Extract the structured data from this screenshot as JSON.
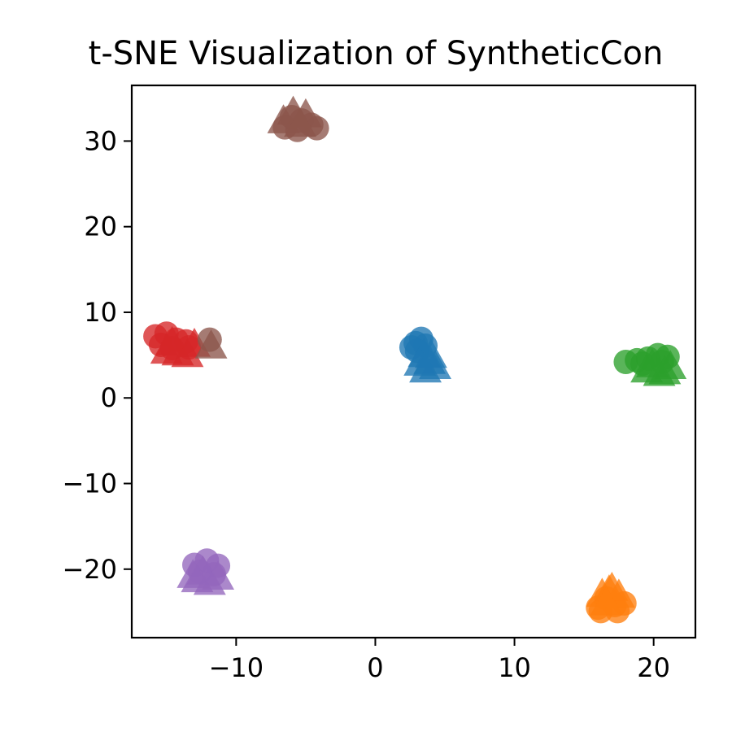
{
  "chart_data": {
    "type": "scatter",
    "title": "t-SNE Visualization of SyntheticCon",
    "xlabel": "",
    "ylabel": "",
    "xlim": [
      -17.5,
      23
    ],
    "ylim": [
      -28,
      36.5
    ],
    "xticks": [
      -10,
      0,
      10,
      20
    ],
    "xtick_labels": [
      "−10",
      "0",
      "10",
      "20"
    ],
    "yticks": [
      -20,
      -10,
      0,
      10,
      20,
      30
    ],
    "ytick_labels": [
      "−20",
      "−10",
      "0",
      "10",
      "20",
      "30"
    ],
    "grid": false,
    "legend": "none",
    "marker_styles": [
      "circle",
      "triangle"
    ],
    "series": [
      {
        "color": "#1f77b4",
        "points": [
          [
            2.9,
            6.4,
            "circle"
          ],
          [
            3.3,
            6.9,
            "circle"
          ],
          [
            2.6,
            5.9,
            "circle"
          ],
          [
            3.6,
            6.1,
            "circle"
          ],
          [
            3.0,
            5.5,
            "circle"
          ],
          [
            3.5,
            5.0,
            "triangle"
          ],
          [
            3.9,
            4.2,
            "triangle"
          ],
          [
            3.2,
            4.0,
            "triangle"
          ],
          [
            4.3,
            3.6,
            "triangle"
          ],
          [
            3.6,
            3.2,
            "triangle"
          ],
          [
            4.0,
            4.9,
            "triangle"
          ]
        ]
      },
      {
        "color": "#ff7f0e",
        "points": [
          [
            16.0,
            -24.5,
            "circle"
          ],
          [
            17.2,
            -24.2,
            "circle"
          ],
          [
            17.9,
            -24.0,
            "circle"
          ],
          [
            16.6,
            -23.4,
            "circle"
          ],
          [
            16.2,
            -24.9,
            "circle"
          ],
          [
            17.4,
            -24.9,
            "circle"
          ],
          [
            16.8,
            -22.6,
            "triangle"
          ],
          [
            17.5,
            -23.1,
            "triangle"
          ],
          [
            16.3,
            -23.0,
            "triangle"
          ],
          [
            17.0,
            -22.3,
            "triangle"
          ],
          [
            16.6,
            -24.0,
            "triangle"
          ]
        ]
      },
      {
        "color": "#2ca02c",
        "points": [
          [
            18.0,
            4.2,
            "circle"
          ],
          [
            18.8,
            4.4,
            "circle"
          ],
          [
            19.6,
            4.6,
            "circle"
          ],
          [
            20.3,
            5.0,
            "circle"
          ],
          [
            21.0,
            4.8,
            "circle"
          ],
          [
            19.2,
            4.0,
            "circle"
          ],
          [
            20.6,
            4.2,
            "circle"
          ],
          [
            19.5,
            3.2,
            "triangle"
          ],
          [
            20.4,
            2.8,
            "triangle"
          ],
          [
            21.2,
            3.6,
            "triangle"
          ],
          [
            19.9,
            3.8,
            "triangle"
          ],
          [
            20.8,
            3.0,
            "triangle"
          ]
        ]
      },
      {
        "color": "#d62728",
        "points": [
          [
            -15.8,
            7.2,
            "circle"
          ],
          [
            -15.0,
            7.5,
            "circle"
          ],
          [
            -14.3,
            6.8,
            "circle"
          ],
          [
            -13.6,
            6.6,
            "circle"
          ],
          [
            -15.4,
            6.2,
            "circle"
          ],
          [
            -14.6,
            5.8,
            "circle"
          ],
          [
            -13.4,
            5.9,
            "circle"
          ],
          [
            -15.0,
            5.4,
            "triangle"
          ],
          [
            -14.2,
            5.2,
            "triangle"
          ],
          [
            -13.5,
            5.0,
            "triangle"
          ],
          [
            -14.6,
            6.4,
            "triangle"
          ],
          [
            -13.0,
            6.2,
            "triangle"
          ]
        ]
      },
      {
        "color": "#8c564b",
        "points": [
          [
            -6.0,
            32.8,
            "circle"
          ],
          [
            -5.3,
            32.4,
            "circle"
          ],
          [
            -4.6,
            31.9,
            "circle"
          ],
          [
            -6.5,
            31.6,
            "circle"
          ],
          [
            -5.6,
            31.3,
            "circle"
          ],
          [
            -4.2,
            31.5,
            "circle"
          ],
          [
            -5.9,
            33.3,
            "triangle"
          ],
          [
            -5.0,
            33.0,
            "triangle"
          ],
          [
            -5.4,
            31.9,
            "triangle"
          ],
          [
            -6.6,
            32.3,
            "triangle"
          ],
          [
            -11.9,
            6.8,
            "circle"
          ],
          [
            -11.8,
            6.0,
            "triangle"
          ]
        ]
      },
      {
        "color": "#9467bd",
        "points": [
          [
            -13.0,
            -19.5,
            "circle"
          ],
          [
            -12.1,
            -19.0,
            "circle"
          ],
          [
            -11.3,
            -19.6,
            "circle"
          ],
          [
            -12.6,
            -20.3,
            "circle"
          ],
          [
            -11.6,
            -20.6,
            "circle"
          ],
          [
            -12.8,
            -21.3,
            "triangle"
          ],
          [
            -11.9,
            -21.6,
            "triangle"
          ],
          [
            -11.3,
            -21.0,
            "triangle"
          ],
          [
            -12.4,
            -20.4,
            "triangle"
          ],
          [
            -13.1,
            -20.8,
            "triangle"
          ]
        ]
      }
    ]
  }
}
